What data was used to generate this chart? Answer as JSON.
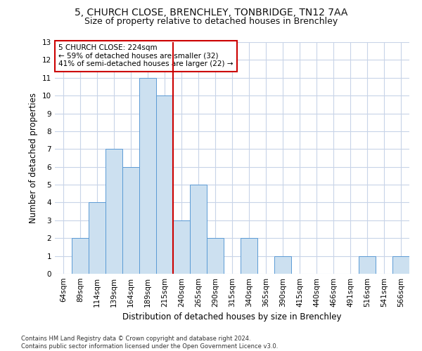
{
  "title1": "5, CHURCH CLOSE, BRENCHLEY, TONBRIDGE, TN12 7AA",
  "title2": "Size of property relative to detached houses in Brenchley",
  "xlabel": "Distribution of detached houses by size in Brenchley",
  "ylabel": "Number of detached properties",
  "categories": [
    "64sqm",
    "89sqm",
    "114sqm",
    "139sqm",
    "164sqm",
    "189sqm",
    "215sqm",
    "240sqm",
    "265sqm",
    "290sqm",
    "315sqm",
    "340sqm",
    "365sqm",
    "390sqm",
    "415sqm",
    "440sqm",
    "466sqm",
    "491sqm",
    "516sqm",
    "541sqm",
    "566sqm"
  ],
  "values": [
    0,
    2,
    4,
    7,
    6,
    11,
    10,
    3,
    5,
    2,
    0,
    2,
    0,
    1,
    0,
    0,
    0,
    0,
    1,
    0,
    1
  ],
  "bar_color": "#cce0f0",
  "bar_edge_color": "#5b9bd5",
  "grid_color": "#c8d4e8",
  "vline_color": "#cc0000",
  "annotation_text": "5 CHURCH CLOSE: 224sqm\n← 59% of detached houses are smaller (32)\n41% of semi-detached houses are larger (22) →",
  "annotation_box_color": "#ffffff",
  "annotation_box_edge": "#cc0000",
  "ylim": [
    0,
    13
  ],
  "yticks": [
    0,
    1,
    2,
    3,
    4,
    5,
    6,
    7,
    8,
    9,
    10,
    11,
    12,
    13
  ],
  "footnote": "Contains HM Land Registry data © Crown copyright and database right 2024.\nContains public sector information licensed under the Open Government Licence v3.0.",
  "background_color": "#ffffff",
  "title_fontsize": 10,
  "subtitle_fontsize": 9,
  "xlabel_fontsize": 8.5,
  "ylabel_fontsize": 8.5,
  "tick_fontsize": 7.5,
  "annot_fontsize": 7.5,
  "footnote_fontsize": 6.0
}
